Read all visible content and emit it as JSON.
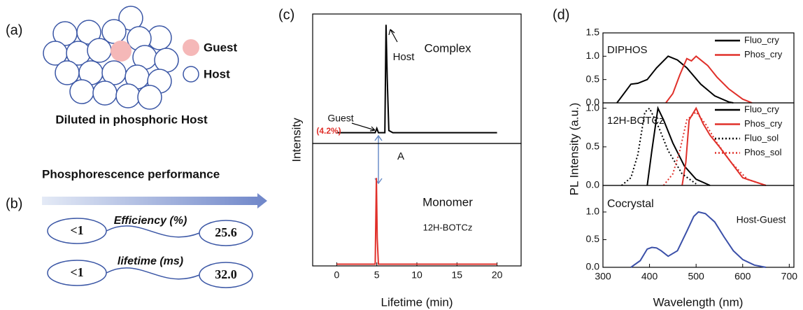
{
  "diagram_a": {
    "panel_label": "(a)",
    "legend_guest": "Guest",
    "legend_host": "Host",
    "caption": "Diluted in phosphoric Host"
  },
  "diagram_b": {
    "panel_label": "(b)",
    "title": "Phosphorescence performance",
    "rows": [
      {
        "before": "<1",
        "label": "Efficiency (%)",
        "after": "25.6"
      },
      {
        "before": "<1",
        "label": "lifetime (ms)",
        "after": "32.0"
      }
    ]
  },
  "chart_data": [
    {
      "type": "line",
      "panel_label": "(c)",
      "title": "Complex",
      "ylabel": "Intensity",
      "annotations": [
        {
          "text": "Host"
        },
        {
          "text": "Guest"
        },
        {
          "text": "(4.2%)",
          "color": "#e0302a"
        },
        {
          "text": "A"
        }
      ],
      "xlim": [
        -3,
        23
      ],
      "ylim": [
        -0.1,
        1.1
      ],
      "series": [
        {
          "color": "#000000",
          "dash": false,
          "x": [
            0,
            4.8,
            5.0,
            5.2,
            6.0,
            6.15,
            6.3,
            6.5,
            7,
            20
          ],
          "values": [
            0,
            0,
            0.04,
            0,
            0,
            1.0,
            0.5,
            0.02,
            0,
            0
          ]
        }
      ]
    },
    {
      "type": "line",
      "title": "Monomer",
      "xlabel": "Lifetime (min)",
      "annotations": [
        {
          "text": "12H-BOTCz"
        }
      ],
      "xlim": [
        -3,
        23
      ],
      "xticks": [
        0,
        5,
        10,
        15,
        20
      ],
      "ylim": [
        -0.02,
        1.4
      ],
      "series": [
        {
          "color": "#e0302a",
          "dash": false,
          "x": [
            0,
            4.8,
            4.95,
            5.05,
            5.2,
            20
          ],
          "values": [
            0,
            0,
            1.0,
            0.3,
            0,
            0
          ]
        }
      ]
    },
    {
      "type": "line",
      "panel_label": "(d)",
      "title": "DIPHOS",
      "ylabel": "PL Intensity (a.u.)",
      "legend": "upper right",
      "xlim": [
        300,
        710
      ],
      "ylim": [
        0,
        1.5
      ],
      "yticks": [
        {
          "value": 0,
          "label": "0.0"
        },
        0.5,
        {
          "value": 1,
          "label": "1.0"
        },
        1.5
      ],
      "series": [
        {
          "name": "Fluo_cry",
          "color": "#000000",
          "dash": false,
          "x": [
            330,
            345,
            360,
            375,
            395,
            415,
            440,
            460,
            480,
            510,
            540,
            570,
            580
          ],
          "values": [
            0,
            0.2,
            0.4,
            0.42,
            0.5,
            0.75,
            1.0,
            0.92,
            0.75,
            0.4,
            0.15,
            0.02,
            0
          ]
        },
        {
          "name": "Phos_cry",
          "color": "#e0302a",
          "dash": false,
          "x": [
            435,
            450,
            465,
            480,
            490,
            500,
            510,
            525,
            545,
            570,
            600,
            620
          ],
          "values": [
            0,
            0.2,
            0.6,
            0.95,
            0.9,
            1.0,
            0.92,
            0.8,
            0.55,
            0.3,
            0.08,
            0
          ]
        }
      ]
    },
    {
      "type": "line",
      "title": "12H-BOTCz",
      "legend": "upper right",
      "xlim": [
        300,
        710
      ],
      "ylim": [
        0,
        1.07
      ],
      "yticks": [
        {
          "value": 0,
          "label": "0.0"
        },
        0.5,
        {
          "value": 1,
          "label": "1.0"
        }
      ],
      "series": [
        {
          "name": "Fluo_cry",
          "color": "#000000",
          "dash": false,
          "x": [
            395,
            405,
            418,
            430,
            450,
            475,
            500,
            530
          ],
          "values": [
            0,
            0.45,
            1.0,
            0.85,
            0.55,
            0.25,
            0.08,
            0
          ]
        },
        {
          "name": "Phos_cry",
          "color": "#e0302a",
          "dash": false,
          "x": [
            470,
            478,
            485,
            500,
            515,
            530,
            550,
            575,
            600,
            650
          ],
          "values": [
            0,
            0.3,
            0.85,
            1.0,
            0.8,
            0.65,
            0.5,
            0.3,
            0.1,
            0
          ]
        },
        {
          "name": "Fluo_sol",
          "color": "#000000",
          "dash": true,
          "x": [
            340,
            360,
            375,
            390,
            400,
            420,
            440,
            470,
            500
          ],
          "values": [
            0,
            0.1,
            0.4,
            0.95,
            1.0,
            0.75,
            0.45,
            0.15,
            0.02
          ]
        },
        {
          "name": "Phos_sol",
          "color": "#e0302a",
          "dash": true,
          "x": [
            430,
            450,
            465,
            480,
            500,
            520,
            545,
            575,
            610,
            650
          ],
          "values": [
            0,
            0.15,
            0.45,
            0.85,
            0.95,
            0.8,
            0.55,
            0.3,
            0.08,
            0
          ]
        }
      ]
    },
    {
      "type": "line",
      "title": "Cocrystal",
      "xlabel": "Wavelength (nm)",
      "annotations": [
        {
          "text": "Host-Guest"
        }
      ],
      "xlim": [
        300,
        710
      ],
      "xticks": [
        300,
        400,
        500,
        600,
        700
      ],
      "ylim": [
        0,
        1.48
      ],
      "yticks": [
        {
          "value": 0,
          "label": "0.0"
        },
        0.5,
        {
          "value": 1,
          "label": "1.0"
        }
      ],
      "series": [
        {
          "color": "#3a4fa8",
          "dash": false,
          "x": [
            360,
            380,
            395,
            405,
            415,
            425,
            440,
            460,
            480,
            495,
            505,
            520,
            540,
            560,
            580,
            600,
            625,
            650
          ],
          "values": [
            0,
            0.12,
            0.33,
            0.36,
            0.35,
            0.3,
            0.2,
            0.3,
            0.65,
            0.92,
            1.0,
            0.97,
            0.82,
            0.55,
            0.3,
            0.14,
            0.04,
            0
          ]
        }
      ]
    }
  ]
}
